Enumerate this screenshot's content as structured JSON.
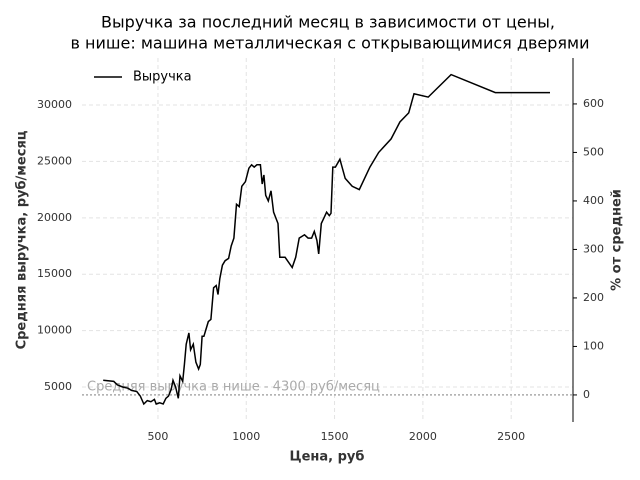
{
  "chart_data": {
    "type": "line",
    "title": "Выручка за последний месяц в зависимости от цены,",
    "subtitle": "в нише: машина металлическая с открывающимися дверями",
    "xlabel": "Цена, руб",
    "ylabel": "Средняя выручка, руб/месяц",
    "y2label": "% от средней",
    "legend": "upper left",
    "grid": true,
    "x": [
      190,
      250,
      270,
      300,
      330,
      350,
      380,
      400,
      420,
      440,
      460,
      480,
      490,
      510,
      530,
      545,
      560,
      575,
      585,
      600,
      615,
      625,
      640,
      650,
      660,
      675,
      685,
      700,
      715,
      730,
      740,
      750,
      760,
      770,
      785,
      800,
      815,
      830,
      840,
      850,
      865,
      880,
      900,
      915,
      930,
      945,
      960,
      975,
      995,
      1015,
      1030,
      1045,
      1060,
      1080,
      1090,
      1100,
      1110,
      1125,
      1140,
      1155,
      1180,
      1190,
      1220,
      1260,
      1280,
      1300,
      1330,
      1350,
      1370,
      1385,
      1400,
      1410,
      1425,
      1440,
      1455,
      1470,
      1480,
      1490,
      1505,
      1530,
      1560,
      1600,
      1640,
      1700,
      1750,
      1820,
      1870,
      1920,
      1950,
      2030,
      2160,
      2410,
      2720
    ],
    "series": [
      {
        "name": "Выручка",
        "color": "#000000",
        "values": [
          5600,
          5500,
          5200,
          5000,
          4900,
          4700,
          4600,
          4200,
          3500,
          3800,
          3700,
          3900,
          3500,
          3600,
          3500,
          4000,
          4200,
          4800,
          5600,
          5000,
          4000,
          6000,
          5500,
          7000,
          8800,
          9800,
          8300,
          8800,
          7200,
          6600,
          7000,
          9500,
          9500,
          10000,
          10800,
          11000,
          13800,
          14000,
          13200,
          14600,
          15800,
          16200,
          16400,
          17500,
          18200,
          21200,
          21000,
          22800,
          23200,
          24400,
          24700,
          24500,
          24700,
          24700,
          23000,
          23800,
          22000,
          21500,
          22400,
          20500,
          19500,
          16500,
          16500,
          15600,
          16500,
          18200,
          18500,
          18200,
          18200,
          18800,
          18000,
          16800,
          19500,
          20000,
          20500,
          20200,
          20400,
          24500,
          24500,
          25200,
          23500,
          22800,
          22500,
          24500,
          25800,
          27000,
          28500,
          29300,
          31000,
          30700,
          32700,
          31100,
          31100
        ]
      }
    ],
    "hline": {
      "value": 4300,
      "label": "Средняя выручка в нише - 4300 руб/месяц",
      "color": "#aaaaaa"
    },
    "xlim": [
      70,
      2850
    ],
    "xticks": [
      500,
      1000,
      1500,
      2000,
      2500
    ],
    "ylim": [
      1900,
      34170
    ],
    "yticks": [
      5000,
      10000,
      15000,
      20000,
      25000,
      30000
    ],
    "y2lim": [
      -55.8,
      694.7
    ],
    "y2ticks": [
      0,
      100,
      200,
      300,
      400,
      500,
      600
    ]
  }
}
